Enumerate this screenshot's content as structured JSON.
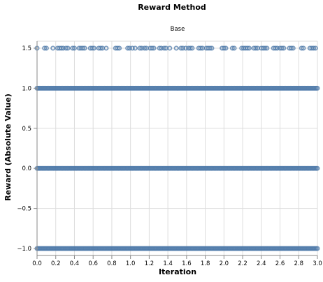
{
  "chart_data": {
    "type": "scatter",
    "title": "Reward Method",
    "subtitle": "Base",
    "xlabel": "Iteration",
    "ylabel": "Reward (Absolute Value)",
    "xlim": [
      0,
      3.0
    ],
    "ylim": [
      -1.0,
      1.5
    ],
    "x_ticks": [
      "0.0",
      "0.2",
      "0.4",
      "0.6",
      "0.8",
      "1.0",
      "1.2",
      "1.4",
      "1.6",
      "1.8",
      "2.0",
      "2.2",
      "2.4",
      "2.6",
      "2.8",
      "3.0"
    ],
    "y_ticks": [
      "−1.0",
      "−0.5",
      "0.0",
      "0.5",
      "1.0",
      "1.5"
    ],
    "grid": true,
    "marker": "open-circle",
    "color": "#4c78a8",
    "series": [
      {
        "y": 1.0,
        "x_start": 0.0,
        "x_end": 3.0,
        "density": "continuous"
      },
      {
        "y": 0.0,
        "x_start": 0.0,
        "x_end": 3.0,
        "density": "continuous"
      },
      {
        "y": -1.0,
        "x_start": 0.0,
        "x_end": 3.0,
        "density": "continuous"
      },
      {
        "y": 1.5,
        "x": [
          0.0,
          0.08,
          0.1,
          0.17,
          0.22,
          0.24,
          0.26,
          0.28,
          0.31,
          0.33,
          0.38,
          0.4,
          0.45,
          0.47,
          0.49,
          0.51,
          0.57,
          0.59,
          0.61,
          0.66,
          0.68,
          0.7,
          0.74,
          0.84,
          0.86,
          0.88,
          0.97,
          0.99,
          1.02,
          1.05,
          1.1,
          1.12,
          1.15,
          1.17,
          1.21,
          1.23,
          1.25,
          1.31,
          1.33,
          1.36,
          1.38,
          1.42,
          1.49,
          1.54,
          1.56,
          1.59,
          1.62,
          1.64,
          1.66,
          1.73,
          1.75,
          1.77,
          1.81,
          1.83,
          1.85,
          1.87,
          1.98,
          2.0,
          2.02,
          2.09,
          2.11,
          2.19,
          2.21,
          2.23,
          2.25,
          2.27,
          2.32,
          2.34,
          2.36,
          2.4,
          2.42,
          2.44,
          2.46,
          2.53,
          2.55,
          2.57,
          2.6,
          2.62,
          2.64,
          2.7,
          2.72,
          2.74,
          2.83,
          2.85,
          2.92,
          2.94,
          2.96,
          2.98
        ]
      }
    ]
  }
}
